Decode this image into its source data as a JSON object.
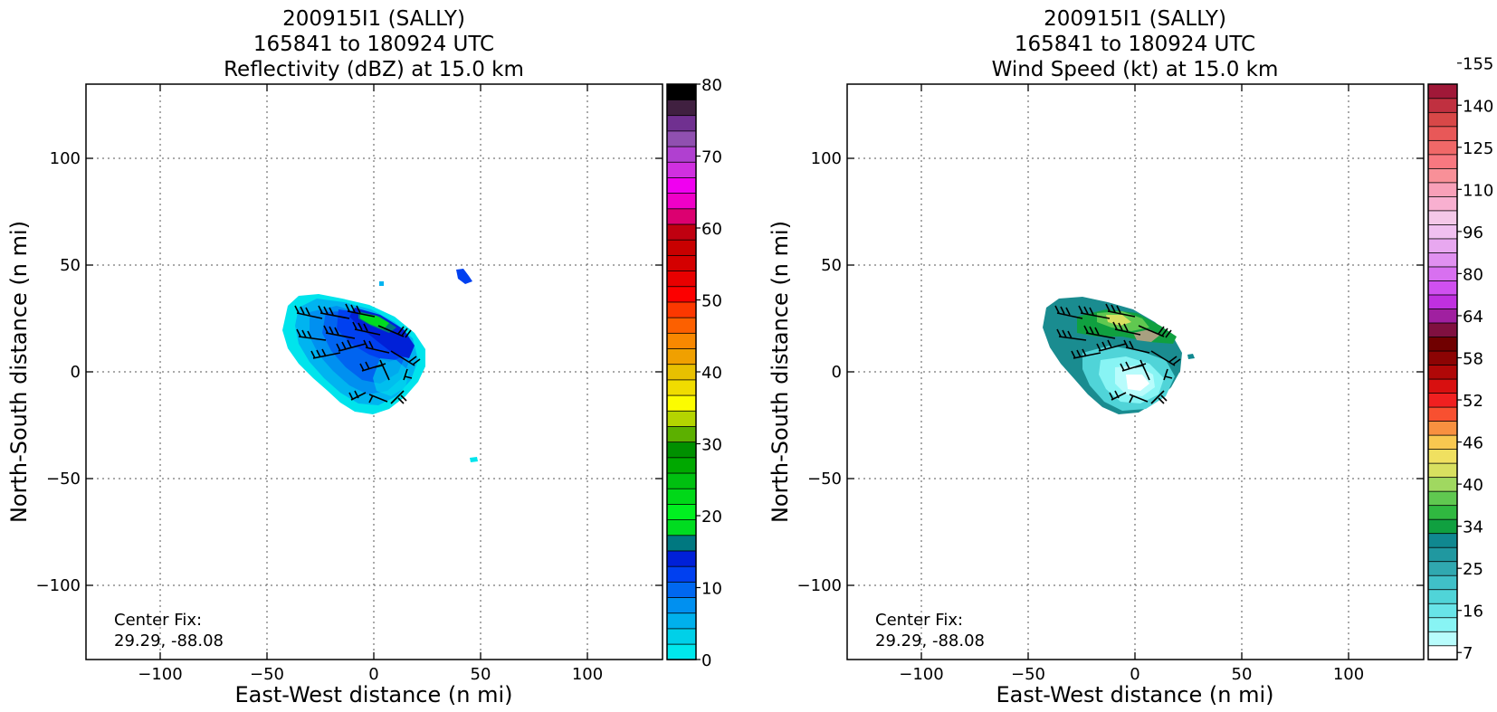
{
  "chart_data": [
    {
      "type": "heatmap",
      "title": [
        "200915I1 (SALLY)",
        "165841 to 180924 UTC",
        "Reflectivity (dBZ) at 15.0 km"
      ],
      "xlabel": "East-West distance (n mi)",
      "ylabel": "North-South distance (n mi)",
      "xlim": [
        -135,
        135
      ],
      "ylim": [
        -135,
        135
      ],
      "xticks": [
        -100,
        -50,
        0,
        50,
        100
      ],
      "yticks": [
        -100,
        -50,
        0,
        50,
        100
      ],
      "xtick_labels": [
        "−100",
        "−50",
        "0",
        "50",
        "100"
      ],
      "ytick_labels": [
        "−100",
        "−50",
        "0",
        "50",
        "100"
      ],
      "grid": true,
      "annotation": [
        "Center Fix:",
        "29.29, -88.08"
      ],
      "colorbar": {
        "min": 0,
        "max": 80,
        "tick_values": [
          0,
          10,
          20,
          30,
          40,
          50,
          60,
          70,
          80
        ],
        "tick_labels": [
          "0",
          "10",
          "20",
          "30",
          "40",
          "50",
          "60",
          "70",
          "80"
        ],
        "colors": [
          "#00e8ec",
          "#00d0e8",
          "#00b0ec",
          "#0090f0",
          "#0068f0",
          "#0040f0",
          "#0020d8",
          "#007880",
          "#00dc20",
          "#00f020",
          "#00d818",
          "#00c010",
          "#00a800",
          "#009000",
          "#5cb000",
          "#b4d400",
          "#fcfc00",
          "#f0dc00",
          "#e8c000",
          "#f0a000",
          "#f88800",
          "#fc6000",
          "#fc3800",
          "#fc0000",
          "#e80000",
          "#d40000",
          "#c80000",
          "#c00010",
          "#dc0070",
          "#f000c8",
          "#f000f0",
          "#d030e0",
          "#b040d0",
          "#9050b0",
          "#703090",
          "#402040",
          "#000000"
        ]
      },
      "features": [
        {
          "name": "main storm echo",
          "x": [
            -42,
            22
          ],
          "y": [
            -22,
            35
          ]
        },
        {
          "name": "isolated echo NE",
          "x": [
            38,
            46
          ],
          "y": [
            41,
            47
          ]
        },
        {
          "name": "isolated echo SE",
          "x": [
            45,
            49
          ],
          "y": [
            -43,
            -41
          ]
        }
      ]
    },
    {
      "type": "heatmap",
      "title": [
        "200915I1 (SALLY)",
        "165841 to 180924 UTC",
        "Wind Speed (kt) at 15.0 km"
      ],
      "xlabel": "East-West distance (n mi)",
      "ylabel": "North-South distance (n mi)",
      "xlim": [
        -135,
        135
      ],
      "ylim": [
        -135,
        135
      ],
      "xticks": [
        -100,
        -50,
        0,
        50,
        100
      ],
      "yticks": [
        -100,
        -50,
        0,
        50,
        100
      ],
      "xtick_labels": [
        "−100",
        "−50",
        "0",
        "50",
        "100"
      ],
      "ytick_labels": [
        "−100",
        "−50",
        "0",
        "50",
        "100"
      ],
      "grid": true,
      "annotation": [
        "Center Fix:",
        "29.29, -88.08"
      ],
      "colorbar": {
        "tick_labels": [
          "7",
          "16",
          "25",
          "34",
          "40",
          "46",
          "52",
          "58",
          "64",
          "80",
          "96",
          "110",
          "125",
          "140",
          "155"
        ],
        "colors": [
          "#ffffff",
          "#b8fcfc",
          "#88f4f4",
          "#68e4e8",
          "#50d4d8",
          "#40c0c8",
          "#30a8b0",
          "#2098a0",
          "#108890",
          "#10a040",
          "#30b840",
          "#60c850",
          "#a0d860",
          "#d8e060",
          "#f0e060",
          "#f8c850",
          "#f89040",
          "#f85030",
          "#f02020",
          "#d81010",
          "#b00808",
          "#8c0404",
          "#700000",
          "#801040",
          "#a020a0",
          "#c030e0",
          "#d050f0",
          "#d870f0",
          "#e090f0",
          "#e8a8f0",
          "#f0c0f0",
          "#f4c8e8",
          "#f8b0d0",
          "#f8a0b8",
          "#f89098",
          "#f87880",
          "#f06868",
          "#e85858",
          "#d84848",
          "#c03040",
          "#a01838"
        ]
      },
      "features": [
        {
          "name": "main storm wind field",
          "x": [
            -42,
            22
          ],
          "y": [
            -22,
            35
          ]
        }
      ]
    }
  ]
}
